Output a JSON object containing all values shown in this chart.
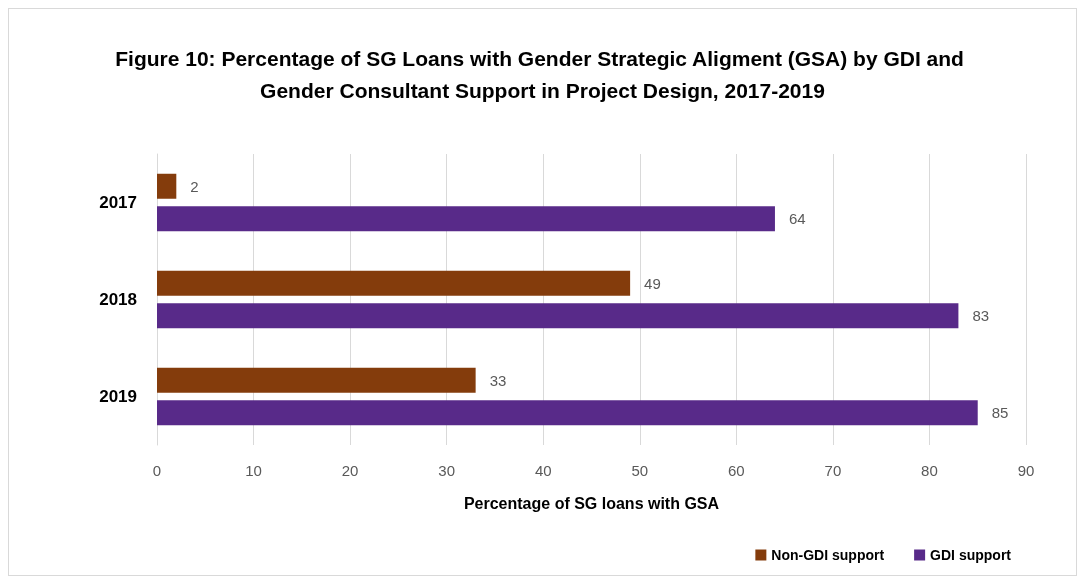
{
  "chart_data": {
    "type": "bar",
    "orientation": "horizontal",
    "title": "Figure 10: Percentage of SG Loans with Gender Strategic Aligment (GSA) by GDI and Gender Consultant Support in Project Design, 2017-2019",
    "xlabel": "Percentage of SG loans with GSA",
    "categories": [
      "2017",
      "2018",
      "2019"
    ],
    "series": [
      {
        "name": "Non-GDI support",
        "color": "#843c0c",
        "values": [
          2,
          49,
          33
        ]
      },
      {
        "name": "GDI support",
        "color": "#582a89",
        "values": [
          64,
          83,
          85
        ]
      }
    ],
    "xlim": [
      0,
      90
    ],
    "xticks": [
      0,
      10,
      20,
      30,
      40,
      50,
      60,
      70,
      80,
      90
    ],
    "grid": "x",
    "legend": "bottom right",
    "data_labels": true
  }
}
